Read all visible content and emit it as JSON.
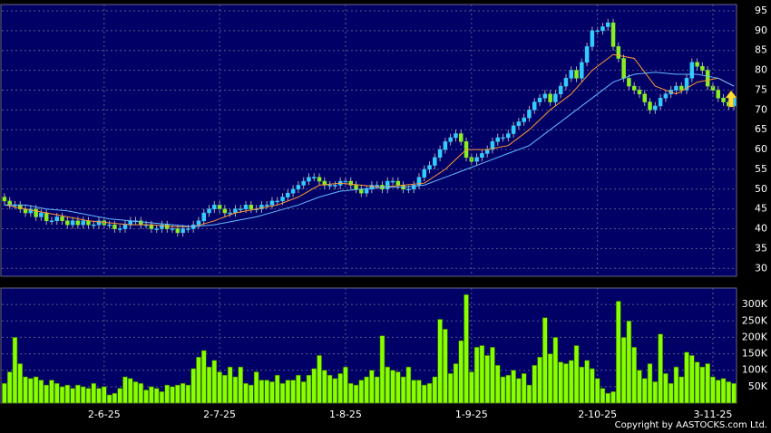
{
  "chart_data": [
    {
      "type": "candlestick",
      "up_color": "#33ccff",
      "down_color": "#88ee22",
      "grid": true,
      "ylim": [
        28,
        96.6
      ],
      "yticks": [
        30,
        35,
        40,
        45,
        50,
        55,
        60,
        65,
        70,
        75,
        80,
        85,
        90,
        95
      ],
      "open": [
        48,
        47,
        46,
        46,
        45,
        44,
        45,
        43,
        44,
        42,
        42,
        43,
        42,
        41,
        42,
        41,
        42,
        41,
        41,
        42,
        41,
        41,
        40,
        40,
        41,
        42,
        42,
        41,
        41,
        40,
        40,
        41,
        40,
        40,
        39,
        40,
        40,
        41,
        42,
        44,
        45,
        46,
        45,
        44,
        44,
        45,
        45,
        46,
        45,
        45,
        46,
        46,
        47,
        47,
        48,
        49,
        50,
        51,
        52,
        53,
        53,
        52,
        51,
        51,
        51,
        52,
        52,
        51,
        50,
        49,
        50,
        51,
        51,
        50,
        52,
        52,
        51,
        50,
        50,
        51,
        53,
        55,
        56,
        58,
        60,
        62,
        63,
        64,
        62,
        58,
        57,
        58,
        59,
        60,
        62,
        63,
        63,
        64,
        66,
        67,
        68,
        70,
        72,
        73,
        74,
        72,
        74,
        76,
        78,
        80,
        78,
        82,
        86,
        90,
        90,
        91,
        92,
        86,
        83,
        78,
        76,
        75,
        74,
        72,
        70,
        71,
        73,
        74,
        75,
        76,
        75,
        78,
        82,
        81,
        80,
        76,
        75,
        73,
        72,
        71
      ],
      "high": [
        49,
        48,
        47,
        47,
        46,
        46,
        46,
        45,
        45,
        43,
        44,
        44,
        43,
        43,
        43,
        43,
        43,
        42,
        43,
        43,
        42,
        42,
        41,
        42,
        43,
        43,
        43,
        42,
        42,
        41,
        42,
        42,
        41,
        41,
        41,
        41,
        42,
        43,
        45,
        46,
        47,
        47,
        46,
        45,
        46,
        46,
        47,
        47,
        46,
        47,
        47,
        48,
        48,
        49,
        50,
        51,
        52,
        53,
        54,
        54,
        54,
        53,
        52,
        52,
        53,
        53,
        53,
        52,
        51,
        51,
        52,
        52,
        52,
        53,
        53,
        53,
        52,
        51,
        52,
        54,
        56,
        57,
        59,
        61,
        63,
        64,
        65,
        65,
        63,
        59,
        59,
        60,
        61,
        63,
        64,
        64,
        65,
        67,
        68,
        69,
        71,
        73,
        74,
        75,
        75,
        75,
        77,
        79,
        81,
        81,
        83,
        87,
        91,
        91,
        92,
        93,
        93,
        87,
        84,
        79,
        77,
        76,
        75,
        73,
        72,
        74,
        75,
        76,
        77,
        77,
        79,
        83,
        83,
        82,
        81,
        77,
        76,
        74,
        73,
        74
      ],
      "low": [
        46,
        45,
        45,
        44,
        43,
        43,
        42,
        42,
        41,
        41,
        41,
        41,
        40,
        40,
        40,
        40,
        40,
        40,
        40,
        40,
        40,
        39,
        39,
        39,
        40,
        41,
        40,
        40,
        39,
        39,
        39,
        39,
        39,
        38,
        38,
        39,
        39,
        40,
        41,
        43,
        44,
        44,
        43,
        43,
        43,
        44,
        44,
        44,
        44,
        44,
        45,
        45,
        46,
        46,
        47,
        48,
        49,
        50,
        51,
        52,
        51,
        50,
        50,
        50,
        50,
        51,
        50,
        49,
        48,
        48,
        49,
        50,
        49,
        49,
        51,
        50,
        49,
        49,
        49,
        50,
        52,
        54,
        55,
        57,
        59,
        61,
        62,
        61,
        57,
        56,
        56,
        57,
        58,
        59,
        61,
        62,
        62,
        63,
        65,
        66,
        67,
        69,
        71,
        72,
        71,
        71,
        73,
        75,
        77,
        77,
        77,
        81,
        85,
        89,
        89,
        90,
        85,
        82,
        77,
        75,
        74,
        73,
        71,
        69,
        69,
        70,
        72,
        73,
        74,
        74,
        74,
        77,
        80,
        79,
        75,
        74,
        72,
        71,
        70,
        70
      ],
      "close": [
        47,
        46,
        46,
        45,
        44,
        45,
        43,
        44,
        42,
        42,
        43,
        42,
        41,
        42,
        41,
        42,
        41,
        41,
        42,
        41,
        41,
        40,
        40,
        41,
        42,
        42,
        41,
        41,
        40,
        40,
        41,
        40,
        40,
        39,
        40,
        40,
        41,
        42,
        44,
        45,
        46,
        45,
        44,
        44,
        45,
        45,
        46,
        45,
        45,
        46,
        46,
        47,
        47,
        48,
        49,
        50,
        51,
        52,
        53,
        53,
        52,
        51,
        51,
        51,
        52,
        52,
        51,
        50,
        49,
        50,
        51,
        51,
        50,
        52,
        52,
        51,
        50,
        50,
        51,
        53,
        55,
        56,
        58,
        60,
        62,
        63,
        64,
        62,
        58,
        57,
        58,
        59,
        60,
        62,
        63,
        63,
        64,
        66,
        67,
        68,
        70,
        72,
        73,
        74,
        72,
        74,
        76,
        78,
        80,
        78,
        82,
        86,
        90,
        90,
        91,
        92,
        86,
        83,
        78,
        76,
        75,
        74,
        72,
        70,
        71,
        73,
        74,
        75,
        76,
        75,
        78,
        82,
        81,
        80,
        76,
        75,
        73,
        72,
        71,
        73
      ],
      "series": [
        {
          "color": "#ff9933",
          "x": [
            0,
            4,
            8,
            12,
            16,
            20,
            24,
            28,
            32,
            36,
            40,
            44,
            48,
            52,
            56,
            60,
            64,
            68,
            72,
            76,
            80,
            84,
            88,
            92,
            96,
            100,
            104,
            108,
            112,
            116,
            120,
            124,
            128,
            132,
            136,
            139
          ],
          "values": [
            46,
            45,
            44,
            43,
            42,
            41.5,
            41,
            41,
            40.5,
            40.5,
            42,
            44,
            45,
            46,
            48,
            51,
            51.5,
            51,
            50.5,
            51,
            51.5,
            55,
            60,
            60,
            61,
            65,
            70,
            74,
            80,
            84,
            83,
            76,
            74,
            77,
            78,
            76
          ]
        },
        {
          "color": "#66bbff",
          "x": [
            0,
            4,
            8,
            12,
            16,
            20,
            24,
            28,
            32,
            36,
            40,
            44,
            48,
            52,
            56,
            60,
            64,
            68,
            72,
            76,
            80,
            84,
            88,
            92,
            96,
            100,
            104,
            108,
            112,
            116,
            120,
            124,
            128,
            132,
            136,
            139
          ],
          "values": [
            46,
            46,
            45,
            44.5,
            43.5,
            42.5,
            42,
            41.5,
            41,
            40.5,
            41,
            42,
            43,
            44.5,
            46,
            48,
            49.5,
            50,
            50.5,
            50.5,
            51,
            53,
            55,
            57,
            59,
            61,
            65,
            69,
            73,
            77,
            79,
            79.5,
            79,
            79,
            78,
            76
          ]
        }
      ]
    },
    {
      "type": "bar",
      "color": "#88ff00",
      "grid": true,
      "ylim": [
        0,
        350
      ],
      "yticks": [
        {
          "value": 50,
          "label": "50K"
        },
        {
          "value": 100,
          "label": "100K"
        },
        {
          "value": 150,
          "label": "150K"
        },
        {
          "value": 200,
          "label": "200K"
        },
        {
          "value": 250,
          "label": "250K"
        },
        {
          "value": 300,
          "label": "300K"
        }
      ],
      "categories": [
        null,
        null,
        null,
        null,
        null,
        null,
        null,
        null,
        null,
        null,
        null,
        null,
        null,
        null,
        null,
        null,
        null,
        null,
        null,
        "2-6-25",
        null,
        null,
        null,
        null,
        null,
        null,
        null,
        null,
        null,
        null,
        null,
        null,
        null,
        null,
        null,
        null,
        null,
        null,
        null,
        null,
        null,
        "2-7-25",
        null,
        null,
        null,
        null,
        null,
        null,
        null,
        null,
        null,
        null,
        null,
        null,
        null,
        null,
        null,
        null,
        null,
        null,
        null,
        null,
        null,
        null,
        null,
        "1-8-25",
        null,
        null,
        null,
        null,
        null,
        null,
        null,
        null,
        null,
        null,
        null,
        null,
        null,
        null,
        null,
        null,
        null,
        null,
        null,
        null,
        null,
        null,
        null,
        "1-9-25",
        null,
        null,
        null,
        null,
        null,
        null,
        null,
        null,
        null,
        null,
        null,
        null,
        null,
        null,
        null,
        null,
        null,
        null,
        null,
        null,
        null,
        null,
        null,
        "2-10-25",
        null,
        null,
        null,
        null,
        null,
        null,
        null,
        null,
        null,
        null,
        null,
        null,
        null,
        null,
        null,
        null,
        null,
        null,
        null,
        null,
        null,
        "3-11-25",
        null,
        null,
        null,
        null
      ],
      "values": [
        60,
        95,
        200,
        120,
        80,
        75,
        80,
        70,
        55,
        70,
        60,
        50,
        55,
        45,
        55,
        50,
        45,
        60,
        45,
        50,
        25,
        30,
        45,
        80,
        75,
        65,
        60,
        40,
        50,
        45,
        35,
        55,
        50,
        55,
        60,
        55,
        105,
        140,
        160,
        110,
        130,
        95,
        85,
        110,
        80,
        110,
        60,
        55,
        95,
        70,
        70,
        65,
        85,
        60,
        70,
        70,
        85,
        65,
        85,
        105,
        145,
        100,
        85,
        75,
        90,
        110,
        60,
        55,
        70,
        80,
        100,
        80,
        205,
        110,
        100,
        95,
        80,
        110,
        70,
        70,
        55,
        60,
        80,
        255,
        225,
        90,
        120,
        190,
        330,
        95,
        170,
        175,
        145,
        170,
        115,
        80,
        85,
        100,
        75,
        90,
        55,
        115,
        140,
        260,
        150,
        200,
        125,
        120,
        130,
        175,
        110,
        130,
        105,
        75,
        45,
        30,
        35,
        310,
        200,
        250,
        170,
        100,
        75,
        120,
        65,
        210,
        90,
        60,
        110,
        80,
        155,
        145,
        125,
        110,
        120,
        80,
        70,
        75,
        65,
        60
      ]
    }
  ],
  "copyright": "Copyright by AASTOCKS.com Ltd."
}
